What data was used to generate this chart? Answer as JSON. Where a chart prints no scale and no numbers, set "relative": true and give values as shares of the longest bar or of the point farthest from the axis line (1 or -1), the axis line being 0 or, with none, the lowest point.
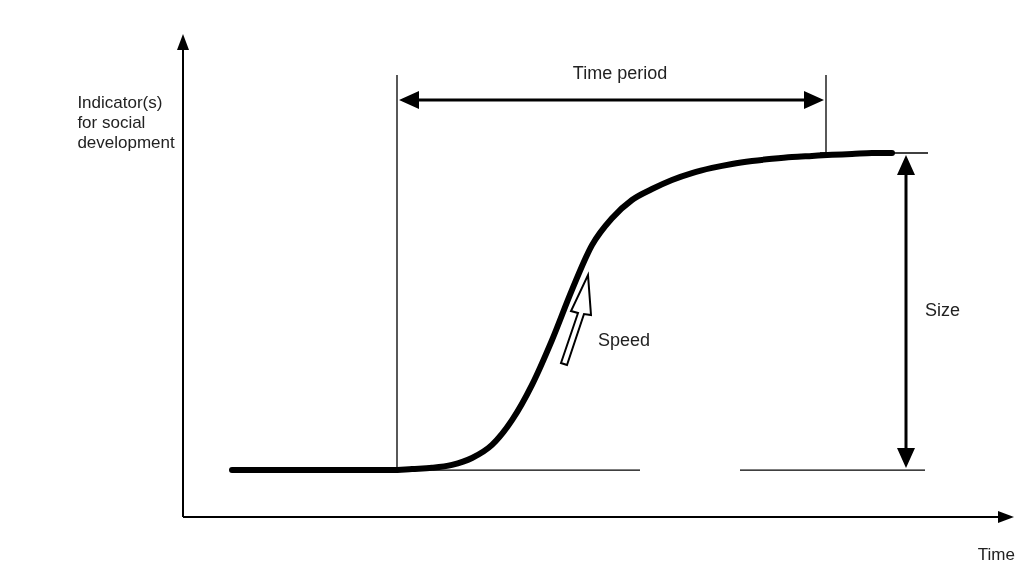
{
  "chart_data": {
    "type": "line",
    "relative": true,
    "xlabel": "Time",
    "ylabel": "Indicator(s) for social development",
    "categories": [
      null,
      null,
      null,
      null,
      null,
      null,
      null,
      null,
      null,
      null,
      null,
      null,
      null,
      null,
      null,
      null,
      null,
      null,
      null,
      null,
      null,
      null,
      null,
      null,
      null,
      null,
      null,
      null,
      null,
      null,
      null,
      null,
      null,
      null
    ],
    "series": [
      {
        "color": "#000000",
        "values": [
          0.129,
          0.129,
          0.129,
          0.129,
          0.129,
          0.129,
          0.129,
          0.129,
          0.129,
          0.132,
          0.135,
          0.143,
          0.162,
          0.198,
          0.266,
          0.363,
          0.486,
          0.624,
          0.747,
          0.821,
          0.871,
          0.901,
          0.926,
          0.945,
          0.959,
          0.97,
          0.978,
          0.984,
          0.989,
          0.992,
          0.995,
          0.997,
          1,
          1
        ]
      }
    ],
    "ref_lines": [
      {
        "axis": "y",
        "value": 0.129,
        "color": "#000000"
      },
      {
        "axis": "y",
        "value": 1,
        "color": "#000000"
      }
    ],
    "annotations": [
      "Time period",
      "Speed",
      "Size"
    ],
    "grid": false,
    "marker": "none",
    "line_style": "solid"
  }
}
